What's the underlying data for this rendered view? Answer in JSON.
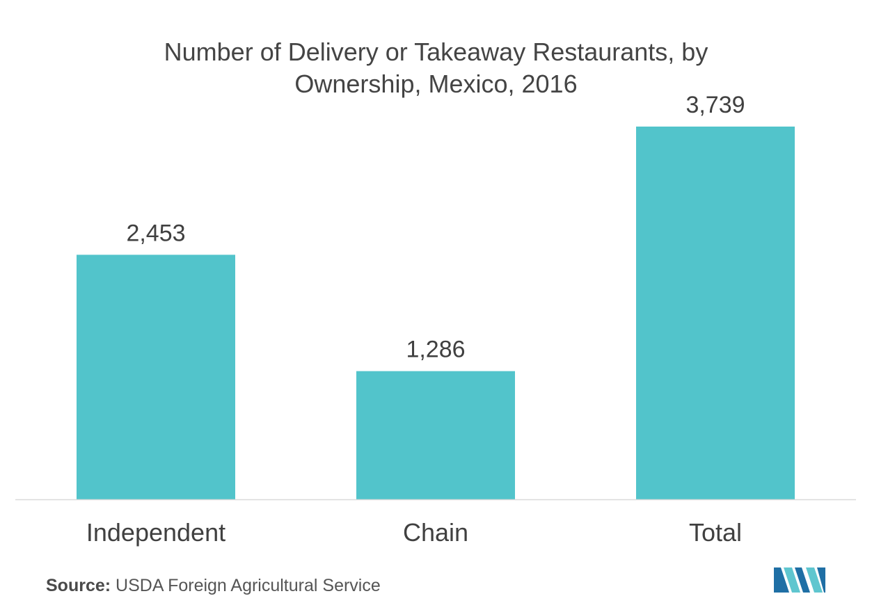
{
  "chart_data": {
    "type": "bar",
    "title_lines": [
      "Number of Delivery or Takeaway Restaurants, by",
      "Ownership, Mexico, 2016"
    ],
    "categories": [
      "Independent",
      "Chain",
      "Total"
    ],
    "values": [
      2453,
      1286,
      3739
    ],
    "value_labels": [
      "2,453",
      "1,286",
      "3,739"
    ],
    "xlabel": "",
    "ylabel": "",
    "ylim": [
      0,
      3739
    ],
    "grid": false,
    "legend": "none",
    "bar_color": "#52c4cb",
    "axis_color": "#d9d9d9"
  },
  "source": {
    "label": "Source:",
    "text": " USDA Foreign Agricultural Service"
  },
  "logo": {
    "icon": "mordor-logo-icon",
    "colors": [
      "#1f6fa5",
      "#5fc6cf"
    ]
  }
}
